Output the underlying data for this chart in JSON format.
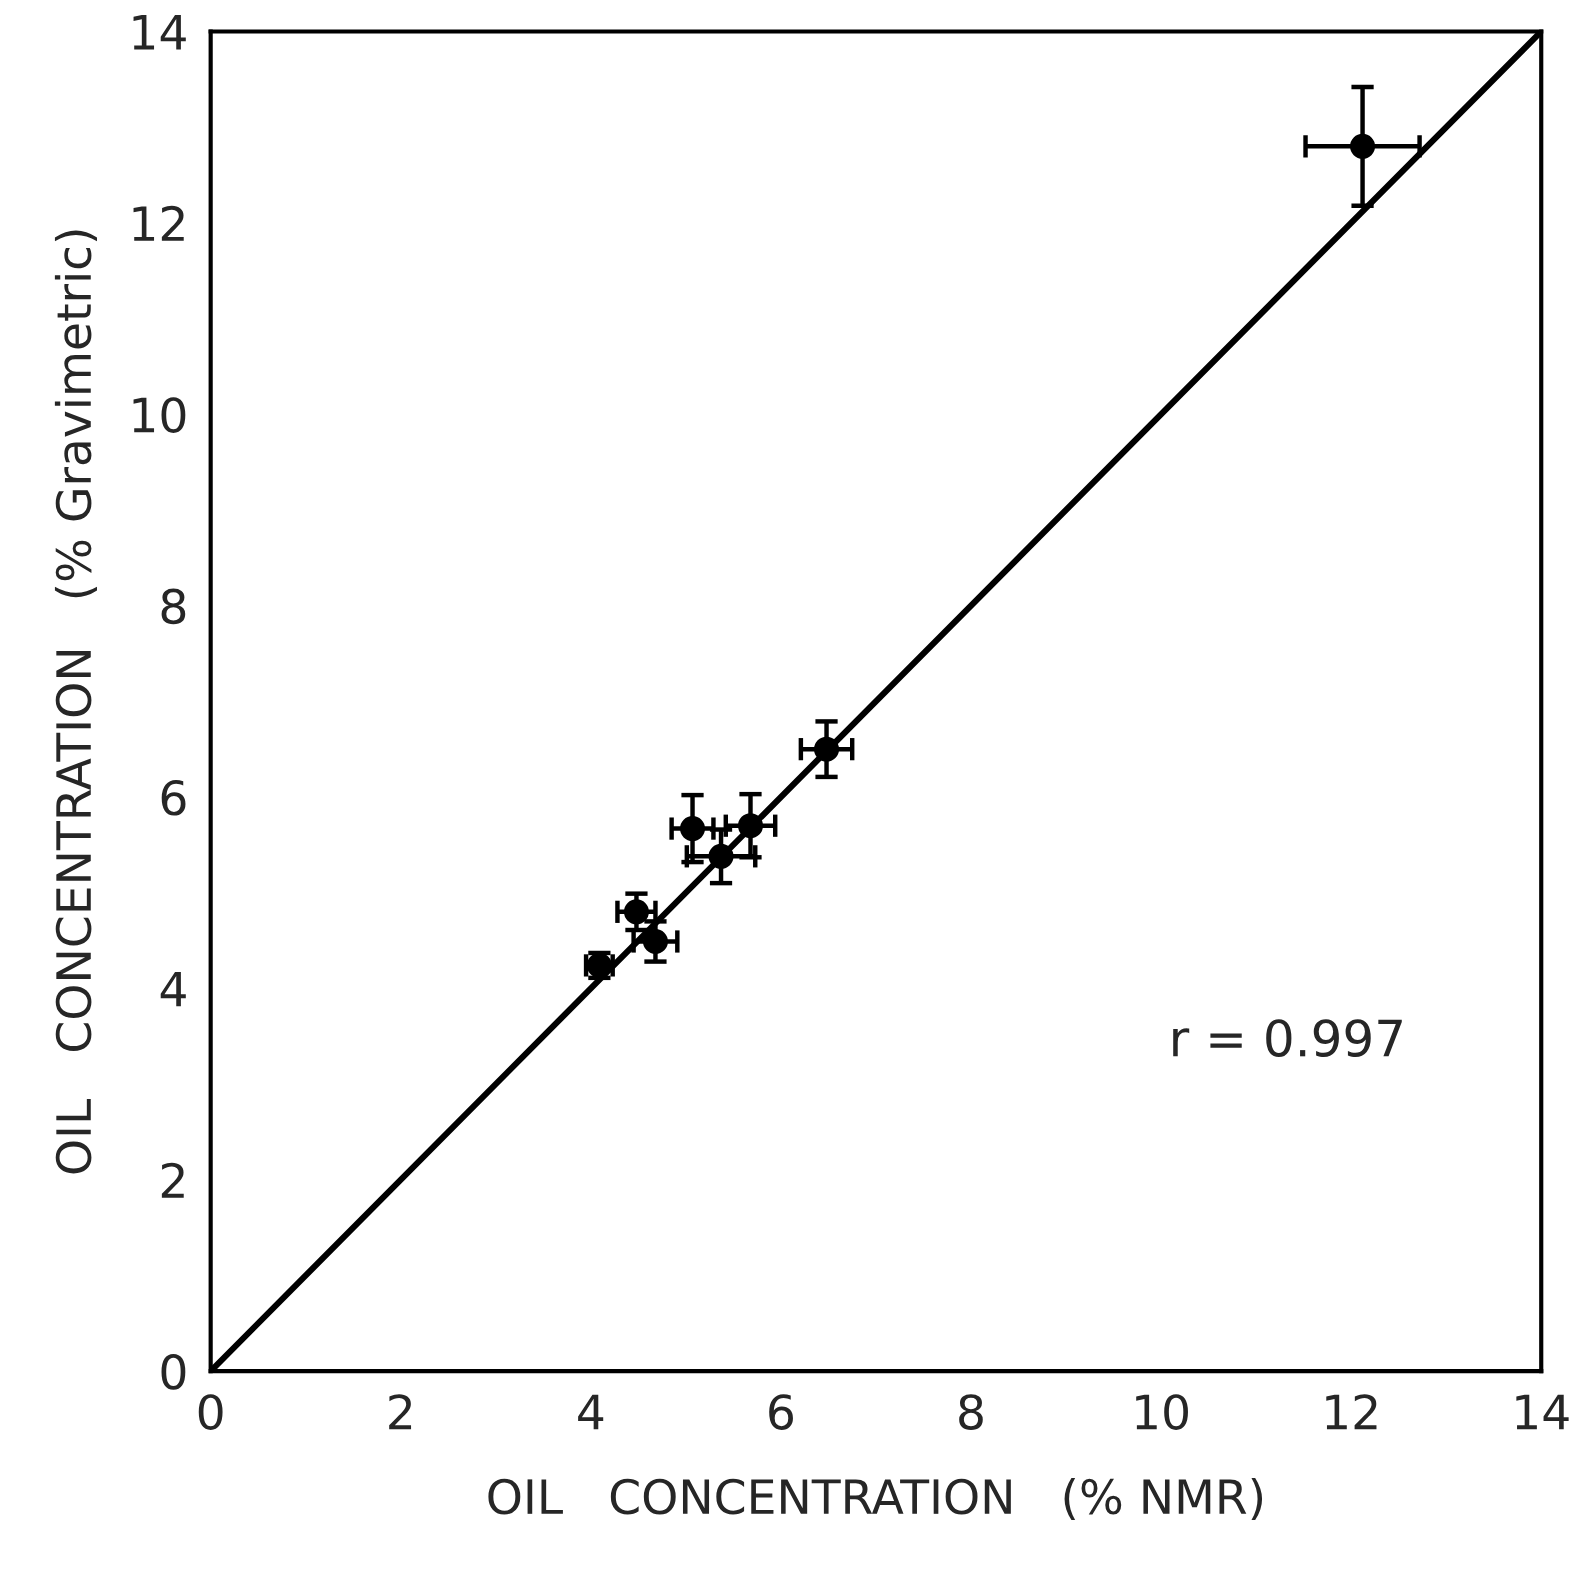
{
  "chart_data": {
    "type": "scatter",
    "xlabel": "OIL   CONCENTRATION   (% NMR)",
    "ylabel": "OIL   CONCENTRATION   (% Gravimetric)",
    "xlim": [
      0,
      14
    ],
    "ylim": [
      0,
      14
    ],
    "xticks": [
      0,
      2,
      4,
      6,
      8,
      10,
      12,
      14
    ],
    "yticks": [
      0,
      2,
      4,
      6,
      8,
      10,
      12,
      14
    ],
    "grid": false,
    "annotations": [
      "r = 0.997"
    ],
    "series": [
      {
        "color": "#000000",
        "marker": "circle",
        "x": [
          4.09,
          4.48,
          4.68,
          5.07,
          5.37,
          5.68,
          6.48,
          12.12
        ],
        "values": [
          4.24,
          4.8,
          4.49,
          5.67,
          5.38,
          5.7,
          6.5,
          12.8
        ],
        "errors": [
          0.13,
          0.19,
          0.21,
          0.35,
          0.28,
          0.33,
          0.29,
          0.62
        ],
        "xerrors": [
          0.14,
          0.2,
          0.23,
          0.22,
          0.36,
          0.26,
          0.27,
          0.6
        ]
      },
      {
        "type": "line",
        "color": "#000000",
        "x": [
          0,
          14
        ],
        "values": [
          0,
          14
        ],
        "line_style": "solid",
        "marker": "none"
      }
    ]
  }
}
